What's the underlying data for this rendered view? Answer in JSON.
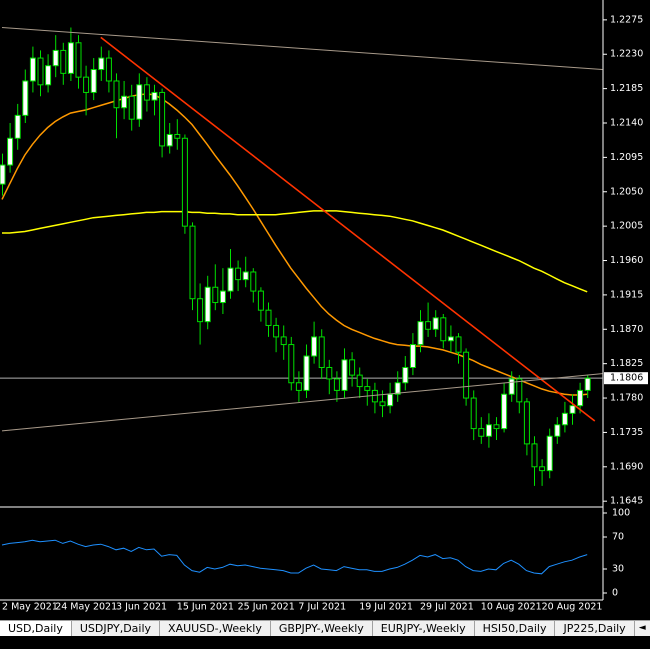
{
  "chart_data": {
    "type": "candlestick",
    "categories": [
      "2 May 2021",
      null,
      null,
      null,
      null,
      null,
      null,
      "24 May 2021",
      null,
      null,
      null,
      null,
      null,
      null,
      null,
      "3 Jun 2021",
      null,
      null,
      null,
      null,
      null,
      null,
      null,
      "15 Jun 2021",
      null,
      null,
      null,
      null,
      null,
      null,
      null,
      "25 Jun 2021",
      null,
      null,
      null,
      null,
      null,
      null,
      null,
      "7 Jul 2021",
      null,
      null,
      null,
      null,
      null,
      null,
      null,
      "19 Jul 2021",
      null,
      null,
      null,
      null,
      null,
      null,
      null,
      "29 Jul 2021",
      null,
      null,
      null,
      null,
      null,
      null,
      null,
      "10 Aug 2021",
      null,
      null,
      null,
      null,
      null,
      null,
      null,
      "20 Aug 2021",
      null,
      null,
      null,
      null,
      null,
      null
    ],
    "open": [
      1.206,
      1.2085,
      1.212,
      1.215,
      1.2195,
      1.2225,
      1.219,
      1.2215,
      1.2235,
      1.2205,
      1.2245,
      1.22,
      1.218,
      1.221,
      1.2225,
      1.2195,
      1.216,
      1.2175,
      1.2145,
      1.219,
      1.217,
      1.218,
      1.211,
      1.2125,
      1.212,
      1.2005,
      1.191,
      1.188,
      1.1925,
      1.1905,
      1.192,
      1.195,
      1.1935,
      1.1945,
      1.192,
      1.1895,
      1.1875,
      1.186,
      1.185,
      1.18,
      1.179,
      1.1835,
      1.186,
      1.182,
      1.1805,
      1.179,
      1.183,
      1.181,
      1.1795,
      1.179,
      1.1775,
      1.177,
      1.1785,
      1.18,
      1.182,
      1.185,
      1.188,
      1.187,
      1.1885,
      1.1855,
      1.186,
      1.184,
      1.178,
      1.174,
      1.173,
      1.1745,
      1.174,
      1.1785,
      1.1805,
      1.1775,
      1.172,
      1.169,
      1.1685,
      1.173,
      1.1745,
      1.176,
      1.177,
      1.179
    ],
    "high": [
      1.21,
      1.214,
      1.2165,
      1.221,
      1.224,
      1.2235,
      1.223,
      1.2255,
      1.2245,
      1.2265,
      1.2255,
      1.2215,
      1.2225,
      1.224,
      1.2235,
      1.2205,
      1.2195,
      1.219,
      1.2205,
      1.22,
      1.219,
      1.2185,
      1.214,
      1.2145,
      1.2125,
      1.201,
      1.193,
      1.194,
      1.1955,
      1.195,
      1.1975,
      1.196,
      1.1965,
      1.195,
      1.1925,
      1.1905,
      1.1885,
      1.1875,
      1.186,
      1.1815,
      1.185,
      1.188,
      1.187,
      1.183,
      1.1815,
      1.1845,
      1.184,
      1.182,
      1.1805,
      1.18,
      1.179,
      1.18,
      1.1815,
      1.1835,
      1.1865,
      1.1895,
      1.1905,
      1.1895,
      1.189,
      1.1875,
      1.1865,
      1.1845,
      1.179,
      1.1755,
      1.176,
      1.1755,
      1.18,
      1.1815,
      1.181,
      1.178,
      1.173,
      1.17,
      1.174,
      1.1755,
      1.1775,
      1.1785,
      1.18,
      1.181
    ],
    "low": [
      1.2045,
      1.2075,
      1.2105,
      1.214,
      1.218,
      1.2175,
      1.218,
      1.22,
      1.219,
      1.2195,
      1.2185,
      1.215,
      1.217,
      1.2195,
      1.218,
      1.212,
      1.2145,
      1.213,
      1.2135,
      1.2155,
      1.215,
      1.2095,
      1.21,
      1.2105,
      1.1995,
      1.1895,
      1.185,
      1.187,
      1.1895,
      1.189,
      1.191,
      1.192,
      1.1925,
      1.1905,
      1.188,
      1.186,
      1.184,
      1.183,
      1.179,
      1.1775,
      1.178,
      1.1825,
      1.1805,
      1.1785,
      1.1775,
      1.178,
      1.1795,
      1.178,
      1.177,
      1.176,
      1.1755,
      1.176,
      1.1775,
      1.179,
      1.181,
      1.184,
      1.186,
      1.186,
      1.1845,
      1.184,
      1.1825,
      1.177,
      1.1725,
      1.172,
      1.1715,
      1.1725,
      1.1735,
      1.1775,
      1.176,
      1.1705,
      1.1665,
      1.1665,
      1.1675,
      1.172,
      1.1735,
      1.1745,
      1.176,
      1.178
    ],
    "close": [
      1.2085,
      1.212,
      1.215,
      1.2195,
      1.2225,
      1.219,
      1.2215,
      1.2235,
      1.2205,
      1.2245,
      1.22,
      1.218,
      1.221,
      1.2225,
      1.2195,
      1.216,
      1.2175,
      1.2145,
      1.219,
      1.217,
      1.218,
      1.211,
      1.2125,
      1.212,
      1.2005,
      1.191,
      1.188,
      1.1925,
      1.1905,
      1.192,
      1.195,
      1.1935,
      1.1945,
      1.192,
      1.1895,
      1.1875,
      1.186,
      1.185,
      1.18,
      1.179,
      1.1835,
      1.186,
      1.182,
      1.1805,
      1.179,
      1.183,
      1.181,
      1.1795,
      1.179,
      1.1775,
      1.177,
      1.1785,
      1.18,
      1.182,
      1.185,
      1.188,
      1.187,
      1.1885,
      1.1855,
      1.186,
      1.184,
      1.178,
      1.174,
      1.173,
      1.1745,
      1.174,
      1.1785,
      1.1805,
      1.1775,
      1.172,
      1.169,
      1.1685,
      1.173,
      1.1745,
      1.176,
      1.177,
      1.179,
      1.1806
    ],
    "candle_color": "#00e000",
    "bull_fill": "#ffffff",
    "bear_fill": "#000000",
    "ylim": [
      1.164,
      1.2301
    ],
    "yticks": [
      1.2275,
      {
        "value": 1.223,
        "label": "1.2230"
      },
      1.2185,
      {
        "value": 1.214,
        "label": "1.2140"
      },
      1.2095,
      {
        "value": 1.205,
        "label": "1.2050"
      },
      1.2005,
      {
        "value": 1.196,
        "label": "1.1960"
      },
      1.1915,
      {
        "value": 1.187,
        "label": "1.1870"
      },
      1.1825,
      {
        "value": 1.178,
        "label": "1.1780"
      },
      1.1735,
      {
        "value": 1.169,
        "label": "1.1690"
      },
      1.1645
    ],
    "grid": false,
    "last_price": 1.1806,
    "overlays": [
      {
        "color": "#ff9900",
        "values": [
          1.204,
          1.206,
          1.208,
          1.2098,
          1.2112,
          1.2124,
          1.2134,
          1.2142,
          1.2148,
          1.2153,
          1.2155,
          1.2157,
          1.216,
          1.2163,
          1.2166,
          1.2169,
          1.2172,
          1.2175,
          1.2177,
          1.2178,
          1.2177,
          1.2172,
          1.2165,
          1.2157,
          1.2148,
          1.2138,
          1.2125,
          1.2112,
          1.2098,
          1.2085,
          1.2072,
          1.2058,
          1.2043,
          1.2028,
          1.2012,
          1.1996,
          1.198,
          1.1965,
          1.195,
          1.1937,
          1.1924,
          1.1912,
          1.19,
          1.189,
          1.1882,
          1.1875,
          1.187,
          1.1866,
          1.1862,
          1.1858,
          1.1855,
          1.1852,
          1.185,
          1.1849,
          1.1848,
          1.1848,
          1.1847,
          1.1845,
          1.1843,
          1.184,
          1.1837,
          1.1833,
          1.1829,
          1.1824,
          1.182,
          1.1816,
          1.1812,
          1.1808,
          1.1804,
          1.18,
          1.1796,
          1.1792,
          1.1789,
          1.1787,
          1.1785,
          1.1784,
          1.1784,
          1.1785
        ]
      },
      {
        "color": "#ffff00",
        "values": [
          1.1996,
          1.1996,
          1.1997,
          1.1998,
          1.2,
          1.2002,
          1.2004,
          1.2006,
          1.2008,
          1.201,
          1.2012,
          1.2014,
          1.2016,
          1.2017,
          1.2018,
          1.2019,
          1.202,
          1.2021,
          1.2022,
          1.2023,
          1.2023,
          1.2024,
          1.2024,
          1.2024,
          1.2024,
          1.2023,
          1.2023,
          1.2022,
          1.2022,
          1.2021,
          1.2021,
          1.202,
          1.202,
          1.202,
          1.202,
          1.202,
          1.202,
          1.2021,
          1.2022,
          1.2023,
          1.2024,
          1.2025,
          1.2025,
          1.2025,
          1.2025,
          1.2024,
          1.2023,
          1.2022,
          1.2021,
          1.202,
          1.2019,
          1.2018,
          1.2016,
          1.2014,
          1.2012,
          1.2009,
          1.2006,
          1.2003,
          1.2,
          1.1996,
          1.1992,
          1.1988,
          1.1984,
          1.198,
          1.1976,
          1.1972,
          1.1968,
          1.1964,
          1.196,
          1.1955,
          1.195,
          1.1946,
          1.1941,
          1.1936,
          1.1931,
          1.1927,
          1.1923,
          1.1919
        ]
      }
    ],
    "trendlines": [
      {
        "color": "#a89a8a",
        "x": [
          0,
          79
        ],
        "values": [
          1.2265,
          1.221
        ]
      },
      {
        "color": "#ff3300",
        "x": [
          13,
          78
        ],
        "values": [
          1.2252,
          1.175
        ]
      },
      {
        "color": "#a89a8a",
        "x": [
          0,
          79
        ],
        "values": [
          1.1737,
          1.1812
        ]
      }
    ],
    "indicator": {
      "type": "line",
      "color": "#1e90ff",
      "ylim": [
        -8.75,
        106.25
      ],
      "yticks": [
        100,
        70,
        30,
        0
      ],
      "values": [
        60,
        62,
        63,
        64,
        66,
        64,
        65,
        66,
        62,
        65,
        61,
        58,
        60,
        61,
        58,
        54,
        56,
        52,
        57,
        54,
        55,
        46,
        48,
        47,
        35,
        28,
        26,
        32,
        30,
        32,
        36,
        34,
        35,
        33,
        31,
        30,
        29,
        28,
        25,
        25,
        31,
        35,
        30,
        29,
        28,
        33,
        31,
        29,
        29,
        27,
        27,
        30,
        32,
        36,
        41,
        47,
        45,
        48,
        43,
        44,
        41,
        33,
        28,
        27,
        30,
        29,
        37,
        41,
        36,
        28,
        25,
        24,
        33,
        36,
        39,
        41,
        45,
        48
      ]
    }
  },
  "tabs": [
    "USD,Daily",
    "USDJPY,Daily",
    "XAUUSD-,Weekly",
    "GBPJPY-,Weekly",
    "EURJPY-,Weekly",
    "HSI50,Daily",
    "JP225,Daily"
  ]
}
